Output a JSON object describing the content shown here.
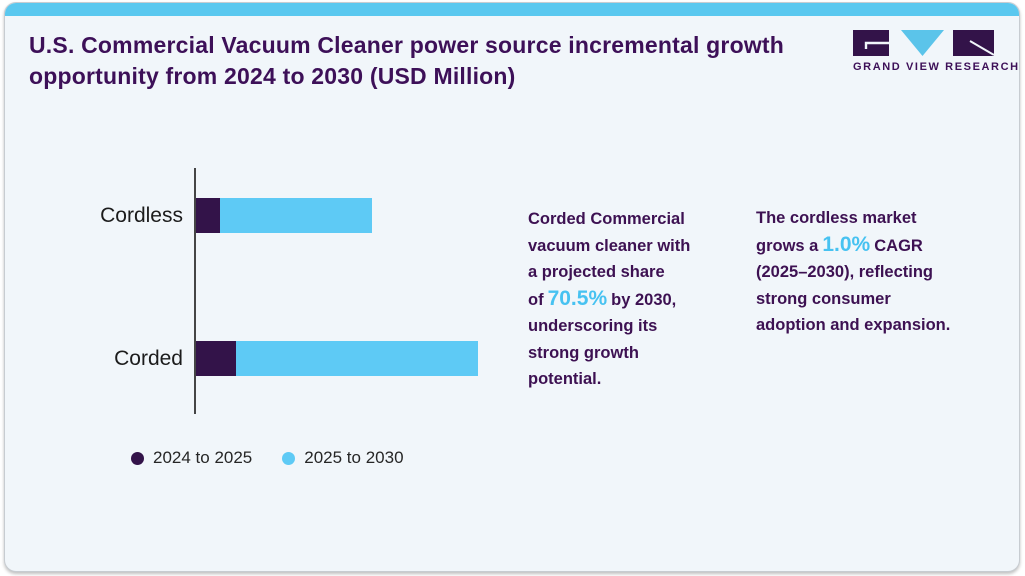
{
  "logo": {
    "name": "Grand View Research",
    "wordmark": "GRAND VIEW RESEARCH"
  },
  "chart_data": {
    "type": "bar",
    "orientation": "horizontal",
    "stacked": true,
    "title": "U.S. Commercial Vacuum Cleaner power source incremental growth opportunity from 2024 to 2030 (USD Million)",
    "categories": [
      "Cordless",
      "Corded"
    ],
    "series": [
      {
        "name": "2024 to 2025",
        "color": "#331349",
        "values": [
          24,
          40
        ]
      },
      {
        "name": "2025 to 2030",
        "color": "#5ecaf5",
        "values": [
          152,
          242
        ]
      }
    ],
    "value_axis": "hidden",
    "values_unit": "relative length (no numeric axis labels shown)",
    "grid": false,
    "legend_position": "bottom-left"
  },
  "annotations": {
    "corded": {
      "before": "Corded Commercial vacuum cleaner with a projected share of",
      "highlight": "70.5%",
      "after": "by 2030, underscoring its strong growth potential."
    },
    "cordless": {
      "before": "The cordless market grows a",
      "highlight": "1.0%",
      "after": "CAGR (2025–2030), reflecting strong consumer adoption and expansion."
    }
  },
  "colors": {
    "accent_strip": "#5ac8ef",
    "title_purple": "#3d1058",
    "bar_dark_purple": "#331349",
    "bar_light_blue": "#5ecaf5",
    "highlight_blue": "#47c2f1",
    "card_background": "#f1f6fa"
  }
}
